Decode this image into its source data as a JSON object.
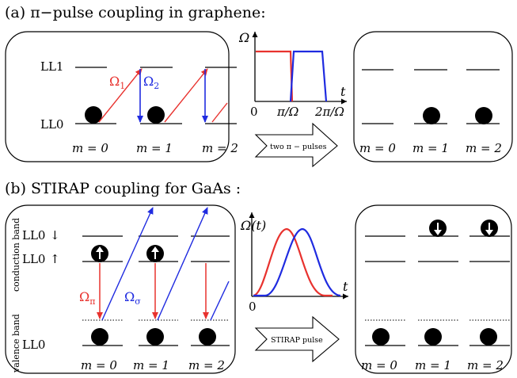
{
  "panel_a": {
    "title": "(a) π−pulse coupling in graphene:",
    "levels": {
      "upper": "LL1",
      "lower": "LL0"
    },
    "couplings": {
      "omega1": "Ω",
      "omega1_sub": "1",
      "omega2": "Ω",
      "omega2_sub": "2"
    },
    "m_labels": [
      "m = 0",
      "m = 1",
      "m = 2"
    ],
    "pulse_plot": {
      "y_axis": "Ω",
      "x_axis": "t",
      "ticks": [
        "0",
        "π/Ω",
        "2π/Ω"
      ]
    },
    "arrow_label": "two π − pulses",
    "result_m_labels": [
      "m = 0",
      "m = 1",
      "m = 2"
    ]
  },
  "panel_b": {
    "title": "(b) STIRAP coupling for GaAs :",
    "levels": {
      "cb_down": "LL0",
      "cb_up": "LL0",
      "vb": "LL0"
    },
    "band_labels": {
      "conduction": "conduction band",
      "valence": "valence band"
    },
    "couplings": {
      "omega_pi": "Ω",
      "omega_pi_sub": "π",
      "omega_sigma": "Ω",
      "omega_sigma_sub": "σ"
    },
    "m_labels": [
      "m = 0",
      "m = 1",
      "m = 2"
    ],
    "pulse_plot": {
      "y_axis": "Ω(t)",
      "x_axis": "t",
      "origin": "0"
    },
    "arrow_label": "STIRAP pulse",
    "result_m_labels": [
      "m = 0",
      "m = 1",
      "m = 2"
    ]
  },
  "colors": {
    "red": "#e8322e",
    "blue": "#1f2be0",
    "black": "#000000"
  }
}
